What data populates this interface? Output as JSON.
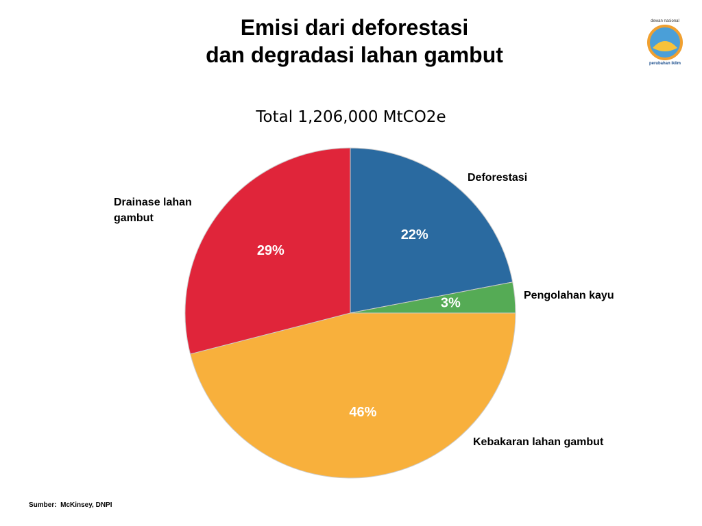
{
  "chart_data": {
    "type": "pie",
    "title_lines": [
      "Emisi dari deforestasi",
      "dan degradasi lahan gambut"
    ],
    "subtitle": "Total 1,206,000 MtCO2e",
    "categories": [
      "Deforestasi",
      "Pengolahan kayu",
      "Kebakaran lahan gambut",
      "Drainase lahan gambut"
    ],
    "values": [
      22,
      3,
      46,
      29
    ],
    "value_labels": [
      "22%",
      "3%",
      "46%",
      "29%"
    ],
    "colors": [
      "#2a6aa0",
      "#55ab55",
      "#f8b03c",
      "#e0253a"
    ],
    "source": "Sumber:  McKinsey, DNPI",
    "logo_texts": [
      "dewan nasional",
      "perubahan iklim"
    ]
  }
}
